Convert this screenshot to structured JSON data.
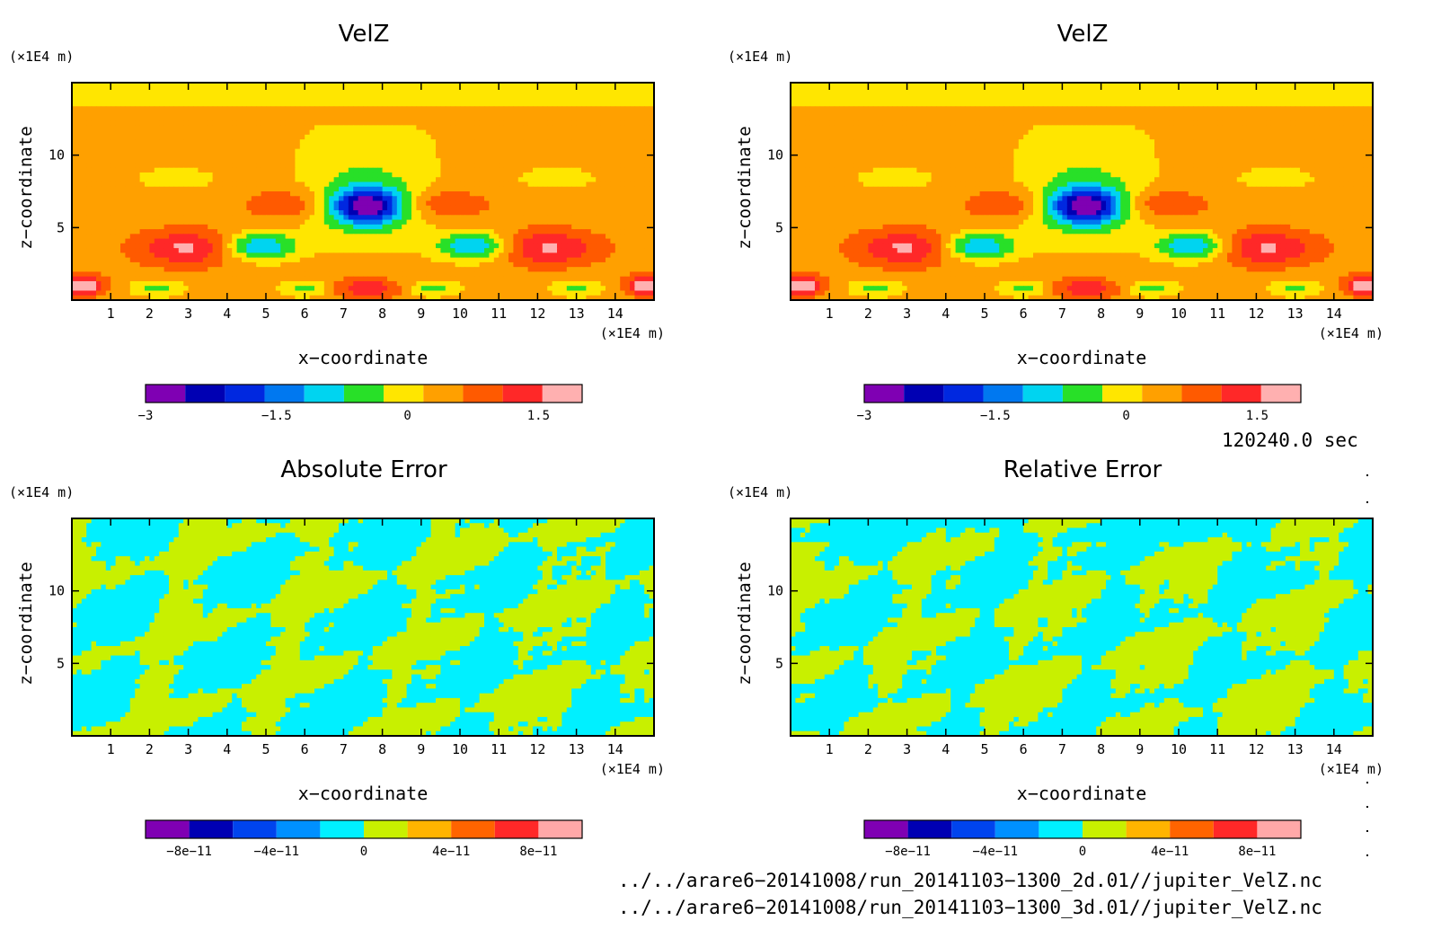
{
  "panels": [
    {
      "id": "velz-left",
      "title": "VelZ",
      "y_unit": "(×1E4 m)",
      "x_unit": "(×1E4 m)",
      "ylabel": "z−coordinate",
      "xlabel": "x−coordinate",
      "kind": "velz",
      "cbar_labels": [
        "−3",
        "−1.5",
        "0",
        "1.5"
      ],
      "cbar_label_values": [
        -3,
        -1.5,
        0,
        1.5
      ]
    },
    {
      "id": "velz-right",
      "title": "VelZ",
      "y_unit": "(×1E4 m)",
      "x_unit": "(×1E4 m)",
      "ylabel": "z−coordinate",
      "xlabel": "x−coordinate",
      "kind": "velz",
      "cbar_labels": [
        "−3",
        "−1.5",
        "0",
        "1.5"
      ],
      "cbar_label_values": [
        -3,
        -1.5,
        0,
        1.5
      ]
    },
    {
      "id": "abs-error",
      "title": "Absolute Error",
      "y_unit": "(×1E4 m)",
      "x_unit": "(×1E4 m)",
      "ylabel": "z−coordinate",
      "xlabel": "x−coordinate",
      "kind": "error",
      "cbar_labels": [
        "−8e−11",
        "−4e−11",
        "0",
        "4e−11",
        "8e−11"
      ],
      "cbar_label_values": [
        -8e-11,
        -4e-11,
        0,
        4e-11,
        8e-11
      ]
    },
    {
      "id": "rel-error",
      "title": "Relative Error",
      "y_unit": "(×1E4 m)",
      "x_unit": "(×1E4 m)",
      "ylabel": "z−coordinate",
      "xlabel": "x−coordinate",
      "kind": "error",
      "cbar_labels": [
        "−8e−11",
        "−4e−11",
        "0",
        "4e−11",
        "8e−11"
      ],
      "cbar_label_values": [
        -8e-11,
        -4e-11,
        0,
        4e-11,
        8e-11
      ]
    }
  ],
  "timestamp": "120240.0 sec",
  "file_paths": [
    "../../arare6−20141008/run_20141103−1300_2d.01//jupiter_VelZ.nc",
    "../../arare6−20141008/run_20141103−1300_3d.01//jupiter_VelZ.nc"
  ],
  "colors": {
    "velz_levels": [
      "#7f00b3",
      "#0000b3",
      "#0028e0",
      "#0078f0",
      "#00d4f0",
      "#28e028",
      "#ffe600",
      "#ffa000",
      "#ff5a00",
      "#ff2828",
      "#ffb0b0"
    ],
    "error_levels": [
      "#7f00b3",
      "#0000b3",
      "#0044ee",
      "#0090ff",
      "#00f0ff",
      "#c8f000",
      "#ffb400",
      "#ff6400",
      "#ff2828",
      "#ffa8a8"
    ]
  },
  "chart_data": [
    {
      "type": "heatmap",
      "title": "VelZ",
      "xlabel": "x−coordinate",
      "ylabel": "z−coordinate",
      "x_unit": "(×1E4 m)",
      "y_unit": "(×1E4 m)",
      "xlim": [
        0,
        15
      ],
      "ylim": [
        0,
        15
      ],
      "x_ticks": [
        1,
        2,
        3,
        4,
        5,
        6,
        7,
        8,
        9,
        10,
        11,
        12,
        13,
        14
      ],
      "y_ticks": [
        5,
        10
      ],
      "colorbar_range": [
        -3,
        2
      ],
      "colorbar_ticks": [
        -3,
        -1.5,
        0,
        1.5
      ]
    },
    {
      "type": "heatmap",
      "title": "VelZ",
      "xlabel": "x−coordinate",
      "ylabel": "z−coordinate",
      "x_unit": "(×1E4 m)",
      "y_unit": "(×1E4 m)",
      "xlim": [
        0,
        15
      ],
      "ylim": [
        0,
        15
      ],
      "x_ticks": [
        1,
        2,
        3,
        4,
        5,
        6,
        7,
        8,
        9,
        10,
        11,
        12,
        13,
        14
      ],
      "y_ticks": [
        5,
        10
      ],
      "colorbar_range": [
        -3,
        2
      ],
      "colorbar_ticks": [
        -3,
        -1.5,
        0,
        1.5
      ]
    },
    {
      "type": "heatmap",
      "title": "Absolute Error",
      "xlabel": "x−coordinate",
      "ylabel": "z−coordinate",
      "x_unit": "(×1E4 m)",
      "y_unit": "(×1E4 m)",
      "xlim": [
        0,
        15
      ],
      "ylim": [
        0,
        15
      ],
      "x_ticks": [
        1,
        2,
        3,
        4,
        5,
        6,
        7,
        8,
        9,
        10,
        11,
        12,
        13,
        14
      ],
      "y_ticks": [
        5,
        10
      ],
      "colorbar_range": [
        -1e-10,
        1e-10
      ],
      "colorbar_ticks": [
        -8e-11,
        -4e-11,
        0,
        4e-11,
        8e-11
      ]
    },
    {
      "type": "heatmap",
      "title": "Relative Error",
      "xlabel": "x−coordinate",
      "ylabel": "z−coordinate",
      "x_unit": "(×1E4 m)",
      "y_unit": "(×1E4 m)",
      "xlim": [
        0,
        15
      ],
      "ylim": [
        0,
        15
      ],
      "x_ticks": [
        1,
        2,
        3,
        4,
        5,
        6,
        7,
        8,
        9,
        10,
        11,
        12,
        13,
        14
      ],
      "y_ticks": [
        5,
        10
      ],
      "colorbar_range": [
        -1e-10,
        1e-10
      ],
      "colorbar_ticks": [
        -8e-11,
        -4e-11,
        0,
        4e-11,
        8e-11
      ]
    }
  ]
}
